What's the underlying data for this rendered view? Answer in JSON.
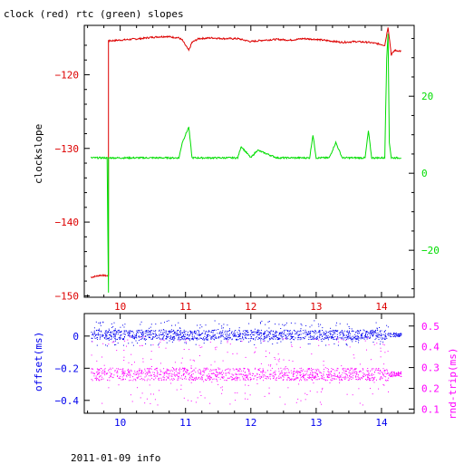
{
  "title": "clock (red) rtc (green) slopes",
  "footer": "2011-01-09 info",
  "colors": {
    "red": "#dd0000",
    "green": "#00dd00",
    "blue": "#0000ee",
    "magenta": "#ff00ff",
    "axis": "#000000"
  },
  "chart_data": [
    {
      "type": "line",
      "title": "clock (red) rtc (green) slopes",
      "xlabel": "",
      "ylabel": "clockslope",
      "xlim": [
        9.45,
        14.5
      ],
      "ylim": [
        -150.2,
        -113.3
      ],
      "y2lim": [
        -32.2,
        38.4
      ],
      "x_ticks": [
        10,
        11,
        12,
        13,
        14
      ],
      "y_ticks": [
        -150,
        -140,
        -130,
        -120
      ],
      "y2_ticks": [
        -20,
        0,
        20
      ],
      "grid": false,
      "series": [
        {
          "name": "clock",
          "color": "red",
          "axis": "left",
          "x": [
            9.55,
            9.7,
            9.82,
            9.82,
            9.83,
            10.0,
            10.3,
            10.5,
            10.7,
            10.9,
            10.95,
            11.05,
            11.1,
            11.2,
            11.4,
            11.6,
            11.8,
            12.0,
            12.2,
            12.4,
            12.6,
            12.8,
            13.0,
            13.2,
            13.4,
            13.6,
            13.8,
            13.95,
            14.05,
            14.1,
            14.15,
            14.2,
            14.3
          ],
          "y": [
            -147.5,
            -147.2,
            -147.3,
            -115.3,
            -115.4,
            -115.3,
            -115.1,
            -114.9,
            -114.8,
            -115.0,
            -115.3,
            -116.7,
            -115.6,
            -115.1,
            -115.0,
            -115.1,
            -115.1,
            -115.5,
            -115.3,
            -115.2,
            -115.3,
            -115.1,
            -115.2,
            -115.4,
            -115.6,
            -115.5,
            -115.6,
            -115.8,
            -116.0,
            -113.5,
            -117.3,
            -116.7,
            -116.8
          ]
        },
        {
          "name": "rtc",
          "color": "green",
          "axis": "right",
          "x": [
            9.55,
            9.8,
            9.82,
            9.82,
            9.83,
            10.5,
            10.9,
            10.95,
            11.05,
            11.1,
            11.2,
            11.8,
            11.85,
            12.0,
            12.1,
            12.4,
            12.9,
            12.95,
            13.0,
            13.2,
            13.3,
            13.4,
            13.75,
            13.8,
            13.85,
            13.95,
            14.05,
            14.08,
            14.1,
            14.12,
            14.15,
            14.3
          ],
          "y": [
            4,
            4,
            -31,
            4,
            4,
            4,
            4,
            8,
            12,
            4,
            4,
            4,
            7,
            4,
            6,
            4,
            4,
            10,
            4,
            4,
            8,
            4,
            4,
            11,
            4,
            4,
            4,
            30,
            36,
            8,
            4,
            4
          ]
        }
      ]
    },
    {
      "type": "scatter",
      "xlabel": "",
      "ylabel": "offset(ms)",
      "y2label": "rnd-trip(ms)",
      "xlim": [
        9.45,
        14.5
      ],
      "ylim": [
        -0.48,
        0.14
      ],
      "y2lim": [
        0.08,
        0.56
      ],
      "x_ticks": [
        10,
        11,
        12,
        13,
        14
      ],
      "y_ticks": [
        -0.4,
        -0.2,
        0
      ],
      "y2_ticks": [
        0.1,
        0.2,
        0.3,
        0.4,
        0.5
      ],
      "grid": false,
      "series": [
        {
          "name": "offset",
          "color": "blue",
          "axis": "left",
          "x_range": [
            9.55,
            14.3
          ],
          "y_center": 0.0,
          "y_spread": [
            -0.06,
            0.1
          ]
        },
        {
          "name": "rnd-trip",
          "color": "magenta",
          "axis": "right",
          "x_range": [
            9.55,
            14.3
          ],
          "y_center": 0.27,
          "y_spread": [
            0.12,
            0.45
          ]
        }
      ]
    }
  ]
}
